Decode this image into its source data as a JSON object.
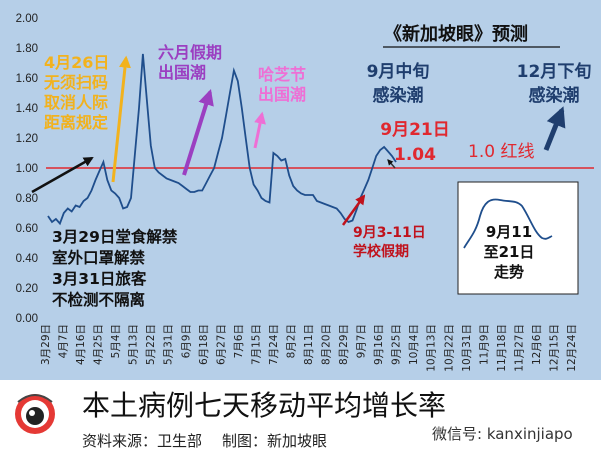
{
  "chart_data": {
    "type": "line",
    "ylim": [
      0,
      2.0
    ],
    "yticks": [
      "0.00",
      "0.20",
      "0.40",
      "0.60",
      "0.80",
      "1.00",
      "1.20",
      "1.40",
      "1.60",
      "1.80",
      "2.00"
    ],
    "xticks": [
      "3月29日",
      "4月7日",
      "4月16日",
      "4月25日",
      "5月4日",
      "5月13日",
      "5月22日",
      "5月31日",
      "6月9日",
      "6月18日",
      "6月27日",
      "7月6日",
      "7月15日",
      "7月24日",
      "8月2日",
      "8月11日",
      "8月20日",
      "8月29日",
      "9月7日",
      "9月16日",
      "9月25日",
      "10月4日",
      "10月13日",
      "10月22日",
      "10月31日",
      "11月9日",
      "11月18日",
      "11月27日",
      "12月6日",
      "12月15日",
      "12月24日"
    ],
    "series": [
      {
        "values": [
          0.68,
          0.64,
          0.66,
          0.63,
          0.7,
          0.73,
          0.71,
          0.75,
          0.74,
          0.78,
          0.8,
          0.85,
          0.92,
          0.98,
          1.04,
          0.92,
          0.85,
          0.83,
          0.8,
          0.73,
          0.74,
          0.8,
          1.1,
          1.4,
          1.76,
          1.45,
          1.15,
          1.0,
          0.97,
          0.95,
          0.93,
          0.92,
          0.91,
          0.9,
          0.88,
          0.86,
          0.84,
          0.84,
          0.85,
          0.85,
          0.9,
          0.95,
          1.0,
          1.1,
          1.2,
          1.35,
          1.5,
          1.65,
          1.58,
          1.4,
          1.2,
          1.0,
          0.89,
          0.85,
          0.8,
          0.78,
          0.77,
          1.1,
          1.08,
          1.05,
          1.06,
          0.95,
          0.88,
          0.85,
          0.83,
          0.82,
          0.82,
          0.82,
          0.78,
          0.77,
          0.76,
          0.75,
          0.74,
          0.73,
          0.7,
          0.66,
          0.64,
          0.65,
          0.72,
          0.8,
          0.86,
          0.92,
          1.0,
          1.08,
          1.12,
          1.14,
          1.11,
          1.08,
          1.04
        ]
      }
    ],
    "reference_line": {
      "y": 1.0,
      "label": "1.0 红线",
      "color": "#e0282f"
    },
    "annotations": {
      "apr26": [
        "4月26日",
        "无须扫码",
        "取消人际",
        "距离规定"
      ],
      "mar29": [
        "3月29日堂食解禁",
        "室外口罩解禁",
        "3月31日旅客",
        "不检测不隔离"
      ],
      "june": [
        "六月假期",
        "出国潮"
      ],
      "hazi": [
        "哈芝节",
        "出国潮"
      ],
      "sept_holiday": [
        "9月3-11日",
        "学校假期"
      ],
      "sep21": [
        "9月21日",
        "1.04"
      ],
      "forecast_title": "《新加坡眼》预测",
      "mid_sept": [
        "9月中旬",
        "感染潮"
      ],
      "late_dec": [
        "12月下旬",
        "感染潮"
      ],
      "inset": [
        "9月11",
        "至21日",
        "走势"
      ]
    },
    "colors": {
      "line": "#1f4e8c",
      "red_line": "#e0282f",
      "gold_arrow": "#f2b21d",
      "purple_arrow": "#9b3fc1",
      "pink_arrow": "#ee6fd5",
      "navy_arrow": "#1f3e6e"
    }
  },
  "footer": {
    "title": "本土病例七天移动平均增长率",
    "source": "资料来源：卫生部",
    "credit": "制图：新加坡眼",
    "wechat": "微信号: kanxinjiapo",
    "logo_text": "新加坡眼"
  }
}
